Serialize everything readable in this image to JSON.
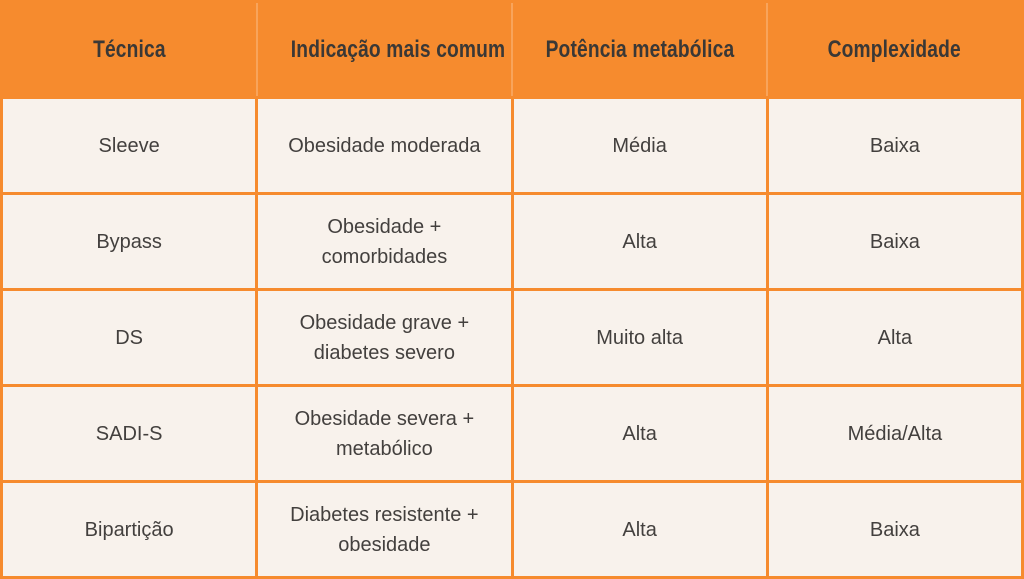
{
  "table": {
    "columns": [
      "Técnica",
      "Indicação mais comum",
      "Potência metabólica",
      "Complexidade"
    ],
    "rows": [
      [
        "Sleeve",
        "Obesidade moderada",
        "Média",
        "Baixa"
      ],
      [
        "Bypass",
        "Obesidade + comorbidades",
        "Alta",
        "Baixa"
      ],
      [
        "DS",
        "Obesidade grave + diabetes severo",
        "Muito alta",
        "Alta"
      ],
      [
        "SADI-S",
        "Obesidade severa + metabólico",
        "Alta",
        "Média/Alta"
      ],
      [
        "Bipartição",
        "Diabetes resistente + obesidade",
        "Alta",
        "Baixa"
      ]
    ]
  },
  "colors": {
    "header_bg": "#F68B2E",
    "cell_bg": "#F8F2EC",
    "border": "#F68B2E",
    "header_text": "#3A3836",
    "body_text": "#43403E"
  }
}
